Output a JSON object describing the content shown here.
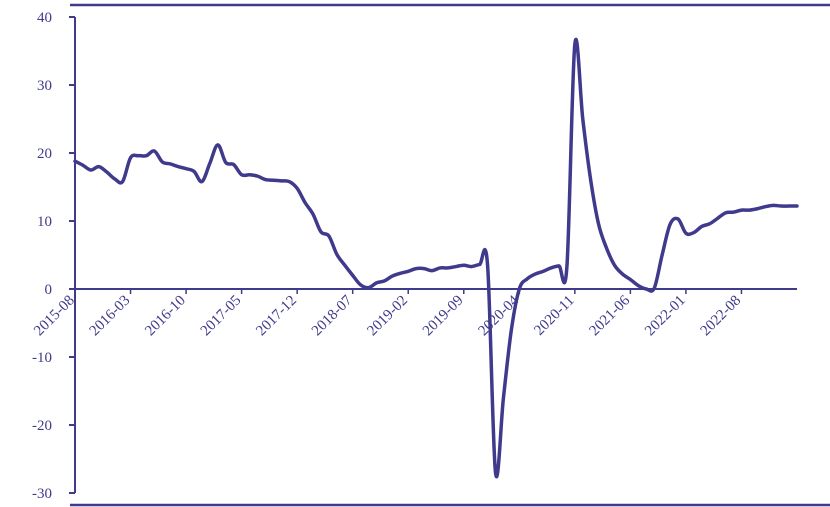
{
  "chart_data": {
    "type": "line",
    "colors": {
      "line": "#3f3a8c",
      "axis": "#3f3a8c",
      "text": "#3f3a8c"
    },
    "ylim": [
      -30,
      40
    ],
    "yticks": [
      40,
      30,
      20,
      10,
      0,
      -10,
      -20,
      -30
    ],
    "ytick_labels": [
      "40",
      "30",
      "20",
      "10",
      "0",
      "-10",
      "-20",
      "-30"
    ],
    "xticks": [
      "2015-08",
      "2016-03",
      "2016-10",
      "2017-05",
      "2017-12",
      "2018-07",
      "2019-02",
      "2019-09",
      "2020-04",
      "2020-11",
      "2021-06",
      "2022-01",
      "2022-08"
    ],
    "grid": false,
    "series": [
      {
        "x": [
          "2015-08",
          "2015-09",
          "2015-10",
          "2015-11",
          "2015-12",
          "2016-01",
          "2016-02",
          "2016-03",
          "2016-04",
          "2016-05",
          "2016-06",
          "2016-07",
          "2016-08",
          "2016-09",
          "2016-10",
          "2016-11",
          "2016-12",
          "2017-01",
          "2017-02",
          "2017-03",
          "2017-04",
          "2017-05",
          "2017-06",
          "2017-07",
          "2017-08",
          "2017-09",
          "2017-10",
          "2017-11",
          "2017-12",
          "2018-01",
          "2018-02",
          "2018-03",
          "2018-04",
          "2018-05",
          "2018-06",
          "2018-07",
          "2018-08",
          "2018-09",
          "2018-10",
          "2018-11",
          "2018-12",
          "2019-01",
          "2019-02",
          "2019-03",
          "2019-04",
          "2019-05",
          "2019-06",
          "2019-07",
          "2019-08",
          "2019-09",
          "2019-10",
          "2019-11",
          "2019-12",
          "2020-01",
          "2020-02",
          "2020-03",
          "2020-04",
          "2020-05",
          "2020-06",
          "2020-07",
          "2020-08",
          "2020-09",
          "2020-10",
          "2020-11",
          "2020-12",
          "2021-01",
          "2021-02",
          "2021-03",
          "2021-04",
          "2021-05",
          "2021-06",
          "2021-07",
          "2021-08",
          "2021-09",
          "2021-10",
          "2021-11",
          "2021-12",
          "2022-01",
          "2022-02",
          "2022-03",
          "2022-04",
          "2022-05",
          "2022-06",
          "2022-07",
          "2022-08",
          "2022-09",
          "2022-10",
          "2022-11",
          "2022-12",
          "2023-01",
          "2023-02",
          "2023-03"
        ],
        "values": [
          18.8,
          18.2,
          17.5,
          18.0,
          17.2,
          16.2,
          15.8,
          19.3,
          19.6,
          19.6,
          20.3,
          18.7,
          18.4,
          18.0,
          17.7,
          17.3,
          15.8,
          18.5,
          21.2,
          18.6,
          18.3,
          16.8,
          16.8,
          16.6,
          16.1,
          16.0,
          15.9,
          15.8,
          14.8,
          12.7,
          11.0,
          8.4,
          7.8,
          5.1,
          3.5,
          2.0,
          0.6,
          0.2,
          0.9,
          1.2,
          1.9,
          2.3,
          2.6,
          3.0,
          3.0,
          2.7,
          3.1,
          3.1,
          3.3,
          3.5,
          3.3,
          3.6,
          3.5,
          -27.0,
          -16.0,
          -6.0,
          0.0,
          1.5,
          2.2,
          2.6,
          3.1,
          3.4,
          3.3,
          36.0,
          25.0,
          16.0,
          9.5,
          6.0,
          3.5,
          2.2,
          1.4,
          0.5,
          0.0,
          0.1,
          5.0,
          9.5,
          10.3,
          8.2,
          8.3,
          9.2,
          9.6,
          10.4,
          11.2,
          11.3,
          11.6,
          11.6,
          11.8,
          12.1,
          12.3,
          12.2,
          12.2,
          12.2
        ]
      }
    ]
  }
}
